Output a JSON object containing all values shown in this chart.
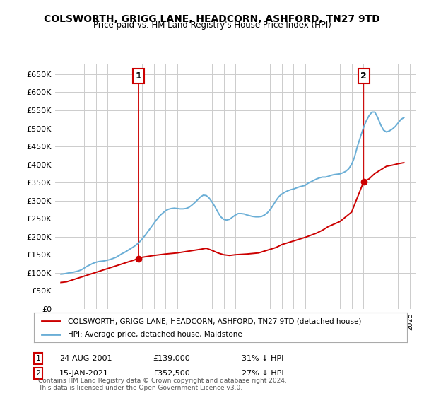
{
  "title": "COLSWORTH, GRIGG LANE, HEADCORN, ASHFORD, TN27 9TD",
  "subtitle": "Price paid vs. HM Land Registry's House Price Index (HPI)",
  "hpi_label": "HPI: Average price, detached house, Maidstone",
  "property_label": "COLSWORTH, GRIGG LANE, HEADCORN, ASHFORD, TN27 9TD (detached house)",
  "annotation1": {
    "num": "1",
    "date": "24-AUG-2001",
    "price": "£139,000",
    "pct": "31% ↓ HPI",
    "x_year": 2001.65,
    "y_val": 139000
  },
  "annotation2": {
    "num": "2",
    "date": "15-JAN-2021",
    "price": "£352,500",
    "pct": "27% ↓ HPI",
    "x_year": 2021.04,
    "y_val": 352500
  },
  "ylim": [
    0,
    680000
  ],
  "yticks": [
    0,
    50000,
    100000,
    150000,
    200000,
    250000,
    300000,
    350000,
    400000,
    450000,
    500000,
    550000,
    600000,
    650000
  ],
  "xlim_start": 1994.5,
  "xlim_end": 2025.5,
  "hpi_color": "#6aaed6",
  "property_color": "#cc0000",
  "background_color": "#ffffff",
  "grid_color": "#cccccc",
  "footer": "Contains HM Land Registry data © Crown copyright and database right 2024.\nThis data is licensed under the Open Government Licence v3.0.",
  "hpi_years": [
    1995,
    1995.25,
    1995.5,
    1995.75,
    1996,
    1996.25,
    1996.5,
    1996.75,
    1997,
    1997.25,
    1997.5,
    1997.75,
    1998,
    1998.25,
    1998.5,
    1998.75,
    1999,
    1999.25,
    1999.5,
    1999.75,
    2000,
    2000.25,
    2000.5,
    2000.75,
    2001,
    2001.25,
    2001.5,
    2001.75,
    2002,
    2002.25,
    2002.5,
    2002.75,
    2003,
    2003.25,
    2003.5,
    2003.75,
    2004,
    2004.25,
    2004.5,
    2004.75,
    2005,
    2005.25,
    2005.5,
    2005.75,
    2006,
    2006.25,
    2006.5,
    2006.75,
    2007,
    2007.25,
    2007.5,
    2007.75,
    2008,
    2008.25,
    2008.5,
    2008.75,
    2009,
    2009.25,
    2009.5,
    2009.75,
    2010,
    2010.25,
    2010.5,
    2010.75,
    2011,
    2011.25,
    2011.5,
    2011.75,
    2012,
    2012.25,
    2012.5,
    2012.75,
    2013,
    2013.25,
    2013.5,
    2013.75,
    2014,
    2014.25,
    2014.5,
    2014.75,
    2015,
    2015.25,
    2015.5,
    2015.75,
    2016,
    2016.25,
    2016.5,
    2016.75,
    2017,
    2017.25,
    2017.5,
    2017.75,
    2018,
    2018.25,
    2018.5,
    2018.75,
    2019,
    2019.25,
    2019.5,
    2019.75,
    2020,
    2020.25,
    2020.5,
    2020.75,
    2021,
    2021.25,
    2021.5,
    2021.75,
    2022,
    2022.25,
    2022.5,
    2022.75,
    2023,
    2023.25,
    2023.5,
    2023.75,
    2024,
    2024.25,
    2024.5
  ],
  "hpi_values": [
    96000,
    97000,
    98500,
    100000,
    101000,
    103000,
    105000,
    108000,
    113000,
    118000,
    122000,
    126000,
    129000,
    131000,
    132000,
    133000,
    135000,
    137000,
    140000,
    143000,
    148000,
    153000,
    157000,
    162000,
    167000,
    172000,
    178000,
    185000,
    194000,
    204000,
    215000,
    226000,
    237000,
    248000,
    258000,
    265000,
    272000,
    276000,
    278000,
    279000,
    278000,
    277000,
    277000,
    278000,
    281000,
    287000,
    294000,
    302000,
    310000,
    315000,
    314000,
    307000,
    296000,
    283000,
    268000,
    255000,
    248000,
    246000,
    248000,
    254000,
    260000,
    264000,
    264000,
    263000,
    260000,
    258000,
    256000,
    255000,
    255000,
    256000,
    260000,
    266000,
    275000,
    287000,
    300000,
    311000,
    318000,
    323000,
    327000,
    330000,
    332000,
    335000,
    338000,
    340000,
    342000,
    348000,
    352000,
    356000,
    360000,
    363000,
    365000,
    365000,
    367000,
    370000,
    372000,
    373000,
    374000,
    377000,
    381000,
    388000,
    400000,
    420000,
    450000,
    475000,
    500000,
    520000,
    535000,
    545000,
    545000,
    530000,
    510000,
    495000,
    490000,
    493000,
    498000,
    505000,
    515000,
    525000,
    530000
  ],
  "property_years": [
    1995.5,
    2001.65,
    2021.04,
    2024.5
  ],
  "property_values": [
    75000,
    139000,
    352500,
    405000
  ],
  "prop_line_years": [
    1995,
    1995.5,
    2001.65,
    2002,
    2003,
    2004,
    2005,
    2006,
    2007,
    2007.5,
    2008,
    2008.5,
    2009,
    2009.5,
    2010,
    2011,
    2012,
    2013,
    2013.5,
    2014,
    2015,
    2016,
    2017,
    2017.5,
    2018,
    2019,
    2020,
    2021.04,
    2021.5,
    2022,
    2022.5,
    2023,
    2023.5,
    2024,
    2024.5
  ],
  "prop_line_values": [
    73000,
    75000,
    139000,
    143000,
    148000,
    152000,
    155000,
    160000,
    165000,
    168000,
    162000,
    155000,
    150000,
    148000,
    150000,
    152000,
    155000,
    165000,
    170000,
    178000,
    188000,
    198000,
    210000,
    218000,
    228000,
    242000,
    268000,
    352500,
    360000,
    375000,
    385000,
    395000,
    398000,
    402000,
    405000
  ]
}
